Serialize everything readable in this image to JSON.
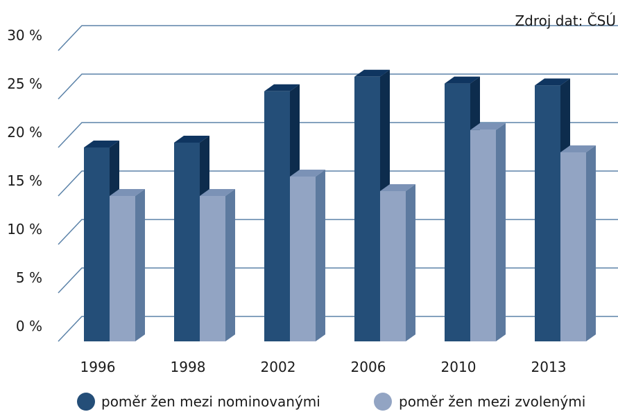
{
  "source_note": "Zdroj dat: ČSÚ",
  "chart_data": {
    "type": "bar",
    "categories": [
      "1996",
      "1998",
      "2002",
      "2006",
      "2010",
      "2013"
    ],
    "y_tick_labels": [
      "0 %",
      "5 %",
      "10 %",
      "15 %",
      "20 %",
      "25 %",
      "30 %"
    ],
    "ylim": [
      0,
      30
    ],
    "grid": true,
    "legend_position": "bottom",
    "series": [
      {
        "name": "poměr žen mezi nominovanými",
        "values": [
          20.0,
          20.5,
          25.8,
          27.3,
          26.6,
          26.4
        ]
      },
      {
        "name": "poměr žen mezi zvolenými",
        "values": [
          15.0,
          15.0,
          17.0,
          15.5,
          21.8,
          19.5
        ]
      }
    ],
    "colors": {
      "series_front": [
        "#244e78",
        "#92a4c3"
      ],
      "series_side": [
        "#0d2c4d",
        "#5d7a9f"
      ],
      "series_top": [
        "#0f3560",
        "#7b92b6"
      ],
      "gridline": "#5b82a8"
    }
  }
}
